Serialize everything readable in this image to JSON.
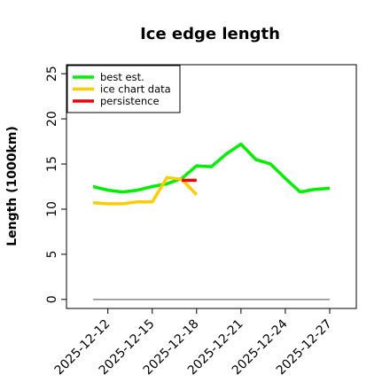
{
  "chart_data": {
    "type": "line",
    "title": "Ice edge length",
    "ylabel": "Length (1000km)",
    "xlabel": "",
    "ylim": [
      -1,
      26
    ],
    "yticks": [
      0,
      5,
      10,
      15,
      20,
      25
    ],
    "x_tick_labels": [
      "2025-12-12",
      "2025-12-15",
      "2025-12-18",
      "2025-12-21",
      "2025-12-24",
      "2025-12-27"
    ],
    "x_tick_days": [
      12,
      15,
      18,
      21,
      24,
      27
    ],
    "xlim_days": [
      9.2,
      28.8
    ],
    "grid": false,
    "legend_placement": "top-left",
    "series": [
      {
        "name": "best est.",
        "color": "#00ee00",
        "x": [
          11,
          12,
          13,
          14,
          15,
          16,
          17,
          18,
          19,
          20,
          21,
          22,
          23,
          24,
          25,
          26,
          27
        ],
        "y": [
          12.5,
          12.1,
          11.9,
          12.1,
          12.5,
          12.8,
          13.4,
          14.8,
          14.7,
          16.1,
          17.2,
          15.5,
          15.0,
          13.4,
          11.9,
          12.2,
          12.3
        ]
      },
      {
        "name": "ice chart data",
        "color": "#ffcc00",
        "x": [
          11,
          12,
          13,
          14,
          15,
          16,
          17,
          18
        ],
        "y": [
          10.7,
          10.6,
          10.6,
          10.8,
          10.8,
          13.5,
          13.3,
          11.6
        ]
      },
      {
        "name": "persistence",
        "color": "#ee0000",
        "x": [
          17,
          18
        ],
        "y": [
          13.2,
          13.2
        ]
      }
    ],
    "baseline": {
      "y": 0,
      "x_start": 11,
      "x_end": 27,
      "color": "#888888"
    }
  }
}
